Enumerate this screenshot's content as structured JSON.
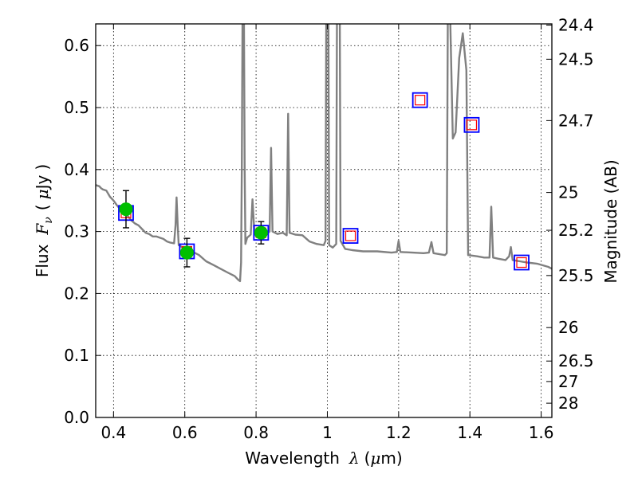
{
  "chart_data": {
    "type": "scatter",
    "xlabel_text": "Wavelength",
    "xlabel_symbol": "λ",
    "xlabel_unit_open": "(",
    "xlabel_unit_mu": "μ",
    "xlabel_unit_rest": "m)",
    "ylabel_text": "Flux",
    "ylabel_symbol": "F",
    "ylabel_sub": "ν",
    "ylabel_unit_open": "(",
    "ylabel_unit_mu": "μ",
    "ylabel_unit_rest": "Jy",
    "ylabel_unit_close": ")",
    "y2label": "Magnitude (AB)",
    "xlim": [
      0.35,
      1.63
    ],
    "ylim": [
      0.0,
      0.635
    ],
    "grid": true,
    "x_ticks": [
      {
        "value": 0.4,
        "label": "0.4"
      },
      {
        "value": 0.6,
        "label": "0.6"
      },
      {
        "value": 0.8,
        "label": "0.8"
      },
      {
        "value": 1.0,
        "label": "1"
      },
      {
        "value": 1.2,
        "label": "1.2"
      },
      {
        "value": 1.4,
        "label": "1.4"
      },
      {
        "value": 1.6,
        "label": "1.6"
      }
    ],
    "y_ticks": [
      {
        "value": 0.0,
        "label": "0.0"
      },
      {
        "value": 0.1,
        "label": "0.1"
      },
      {
        "value": 0.2,
        "label": "0.2"
      },
      {
        "value": 0.3,
        "label": "0.3"
      },
      {
        "value": 0.4,
        "label": "0.4"
      },
      {
        "value": 0.5,
        "label": "0.5"
      },
      {
        "value": 0.6,
        "label": "0.6"
      }
    ],
    "y2_ticks": [
      {
        "flux": 0.633,
        "label": "24.4"
      },
      {
        "flux": 0.578,
        "label": "24.5"
      },
      {
        "flux": 0.479,
        "label": "24.7"
      },
      {
        "flux": 0.363,
        "label": "25"
      },
      {
        "flux": 0.302,
        "label": "25.2"
      },
      {
        "flux": 0.229,
        "label": "25.5"
      },
      {
        "flux": 0.145,
        "label": "26"
      },
      {
        "flux": 0.091,
        "label": "26.5"
      },
      {
        "flux": 0.058,
        "label": "27"
      },
      {
        "flux": 0.023,
        "label": "28"
      }
    ],
    "sed_color": "#808080",
    "sed": [
      [
        0.35,
        0.375
      ],
      [
        0.36,
        0.373
      ],
      [
        0.365,
        0.37
      ],
      [
        0.37,
        0.368
      ],
      [
        0.38,
        0.366
      ],
      [
        0.39,
        0.356
      ],
      [
        0.4,
        0.35
      ],
      [
        0.41,
        0.342
      ],
      [
        0.42,
        0.335
      ],
      [
        0.43,
        0.34
      ],
      [
        0.44,
        0.325
      ],
      [
        0.45,
        0.318
      ],
      [
        0.46,
        0.313
      ],
      [
        0.47,
        0.31
      ],
      [
        0.48,
        0.304
      ],
      [
        0.49,
        0.298
      ],
      [
        0.5,
        0.296
      ],
      [
        0.51,
        0.292
      ],
      [
        0.52,
        0.292
      ],
      [
        0.53,
        0.29
      ],
      [
        0.54,
        0.288
      ],
      [
        0.55,
        0.284
      ],
      [
        0.56,
        0.282
      ],
      [
        0.57,
        0.281
      ],
      [
        0.574,
        0.31
      ],
      [
        0.577,
        0.355
      ],
      [
        0.58,
        0.31
      ],
      [
        0.583,
        0.278
      ],
      [
        0.6,
        0.272
      ],
      [
        0.62,
        0.268
      ],
      [
        0.64,
        0.262
      ],
      [
        0.66,
        0.252
      ],
      [
        0.68,
        0.246
      ],
      [
        0.7,
        0.24
      ],
      [
        0.72,
        0.234
      ],
      [
        0.74,
        0.228
      ],
      [
        0.75,
        0.222
      ],
      [
        0.755,
        0.22
      ],
      [
        0.758,
        0.25
      ],
      [
        0.76,
        0.4
      ],
      [
        0.762,
        0.64
      ],
      [
        0.766,
        0.64
      ],
      [
        0.768,
        0.4
      ],
      [
        0.77,
        0.28
      ],
      [
        0.775,
        0.29
      ],
      [
        0.785,
        0.295
      ],
      [
        0.79,
        0.352
      ],
      [
        0.795,
        0.3
      ],
      [
        0.8,
        0.292
      ],
      [
        0.82,
        0.288
      ],
      [
        0.83,
        0.296
      ],
      [
        0.838,
        0.3
      ],
      [
        0.842,
        0.435
      ],
      [
        0.846,
        0.3
      ],
      [
        0.86,
        0.296
      ],
      [
        0.875,
        0.298
      ],
      [
        0.886,
        0.294
      ],
      [
        0.89,
        0.49
      ],
      [
        0.894,
        0.298
      ],
      [
        0.91,
        0.295
      ],
      [
        0.93,
        0.294
      ],
      [
        0.95,
        0.284
      ],
      [
        0.97,
        0.28
      ],
      [
        0.99,
        0.278
      ],
      [
        0.995,
        0.285
      ],
      [
        0.997,
        0.64
      ],
      [
        1.003,
        0.64
      ],
      [
        1.005,
        0.278
      ],
      [
        1.015,
        0.274
      ],
      [
        1.025,
        0.28
      ],
      [
        1.027,
        0.64
      ],
      [
        1.035,
        0.64
      ],
      [
        1.037,
        0.285
      ],
      [
        1.05,
        0.272
      ],
      [
        1.07,
        0.27
      ],
      [
        1.1,
        0.268
      ],
      [
        1.14,
        0.268
      ],
      [
        1.18,
        0.266
      ],
      [
        1.195,
        0.267
      ],
      [
        1.2,
        0.285
      ],
      [
        1.205,
        0.267
      ],
      [
        1.24,
        0.266
      ],
      [
        1.27,
        0.265
      ],
      [
        1.285,
        0.266
      ],
      [
        1.292,
        0.283
      ],
      [
        1.298,
        0.265
      ],
      [
        1.33,
        0.262
      ],
      [
        1.335,
        0.265
      ],
      [
        1.338,
        0.64
      ],
      [
        1.345,
        0.64
      ],
      [
        1.352,
        0.45
      ],
      [
        1.36,
        0.46
      ],
      [
        1.37,
        0.58
      ],
      [
        1.38,
        0.62
      ],
      [
        1.39,
        0.56
      ],
      [
        1.395,
        0.262
      ],
      [
        1.42,
        0.26
      ],
      [
        1.44,
        0.258
      ],
      [
        1.455,
        0.258
      ],
      [
        1.46,
        0.34
      ],
      [
        1.465,
        0.258
      ],
      [
        1.48,
        0.256
      ],
      [
        1.5,
        0.254
      ],
      [
        1.51,
        0.26
      ],
      [
        1.515,
        0.275
      ],
      [
        1.52,
        0.254
      ],
      [
        1.56,
        0.25
      ],
      [
        1.59,
        0.248
      ],
      [
        1.62,
        0.243
      ],
      [
        1.63,
        0.24
      ]
    ],
    "measured_points": [
      {
        "x": 0.435,
        "y": 0.336,
        "err": 0.03
      },
      {
        "x": 0.606,
        "y": 0.266,
        "err": 0.023
      },
      {
        "x": 0.814,
        "y": 0.298,
        "err": 0.018
      }
    ],
    "measured_color": "#00bf00",
    "model_points": [
      {
        "x": 0.435,
        "y": 0.33
      },
      {
        "x": 0.606,
        "y": 0.268
      },
      {
        "x": 0.814,
        "y": 0.298
      },
      {
        "x": 1.065,
        "y": 0.293
      },
      {
        "x": 1.26,
        "y": 0.512
      },
      {
        "x": 1.405,
        "y": 0.472
      },
      {
        "x": 1.545,
        "y": 0.25
      }
    ],
    "model_outer_color": "#0000ff",
    "model_inner_color": "#ff0000"
  }
}
